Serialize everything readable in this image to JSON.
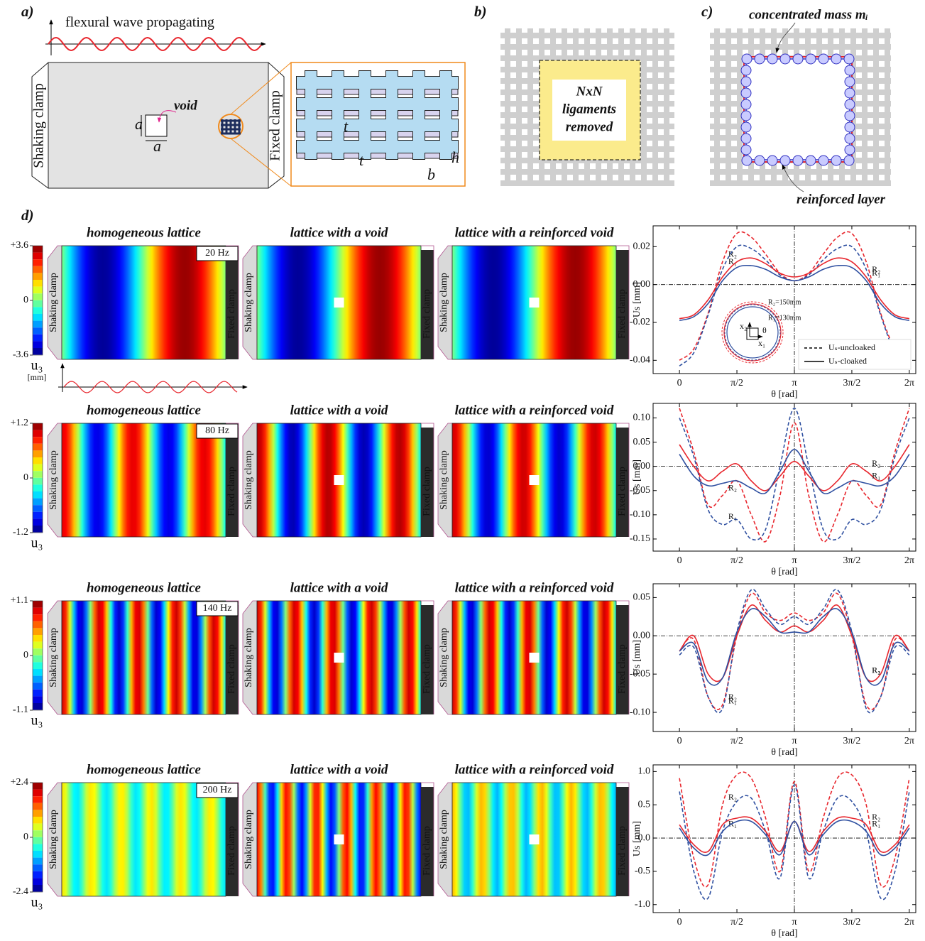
{
  "panel_a": {
    "label": "a)",
    "wave": "flexural wave propagating",
    "shaking": "Shaking clamp",
    "fixed": "Fixed clamp",
    "void": "void",
    "dims": [
      "a",
      "a"
    ],
    "zoom": [
      "t",
      "t",
      "b",
      "h"
    ]
  },
  "panel_b": {
    "label": "b)",
    "text": [
      "NxN",
      "ligaments",
      "removed"
    ]
  },
  "panel_c": {
    "label": "c)",
    "mass": "concentrated mass mᵢ",
    "layer": "reinforced layer"
  },
  "panel_d": {
    "label": "d)",
    "columns": [
      "homogeneous lattice",
      "lattice with a void",
      "lattice with a reinforced void"
    ],
    "shaking": "Shaking clamp",
    "fixed": "Fixed clamp",
    "rows": [
      {
        "frequency": "20 Hz",
        "colorbar": [
          {
            "value": 3.6,
            "label": "+3.6"
          },
          0,
          -3.6
        ],
        "unit": "u₃",
        "unit_note": "[mm]"
      },
      {
        "frequency": "80 Hz",
        "colorbar": [
          {
            "value": 1.2,
            "label": "+1.2"
          },
          0,
          -1.2
        ],
        "unit": "u₃"
      },
      {
        "frequency": "140 Hz",
        "colorbar": [
          {
            "value": 1.1,
            "label": "+1.1"
          },
          0,
          -1.1
        ],
        "unit": "u₃"
      },
      {
        "frequency": "200 Hz",
        "colorbar": [
          {
            "value": 2.4,
            "label": "+2.4"
          },
          0,
          -2.4
        ],
        "unit": "u₃"
      }
    ]
  },
  "chart_data": [
    {
      "type": "line",
      "xlabel": "θ [rad]",
      "ylabel": "Us [mm]",
      "reference_lines": true,
      "x": [
        0,
        0.3927,
        0.7854,
        1.1781,
        1.5708,
        1.9635,
        2.3562,
        2.7489,
        3.1416,
        3.5343,
        3.927,
        4.3197,
        4.7124,
        5.1051,
        5.4978,
        5.8905,
        6.2832
      ],
      "xlim": [
        -0.72,
        6.46
      ],
      "xticks": [
        0,
        {
          "value": 1.5708,
          "label": "π/2"
        },
        {
          "value": 3.1416,
          "label": "π"
        },
        {
          "value": 4.7124,
          "label": "3π/2"
        },
        {
          "value": 6.2832,
          "label": "2π"
        }
      ],
      "ylim": [
        -0.047,
        0.031
      ],
      "yticks": [
        -0.04,
        -0.02,
        {
          "value": 0,
          "label": "0.00"
        },
        0.02
      ],
      "legend": [
        "Uₛ-uncloaked",
        "Uₛ-cloaked"
      ],
      "legend_loc": "lower right",
      "inset": [
        "R₂=150mm",
        "R₁=130mm",
        "x₂",
        "x₁",
        "θ"
      ],
      "series": [
        {
          "name": "R₂",
          "color": "#e8262d",
          "dash": true,
          "values": [
            -0.04,
            -0.034,
            -0.015,
            0.012,
            0.027,
            0.025,
            0.016,
            0.006,
            0.002,
            0.006,
            0.016,
            0.025,
            0.027,
            0.012,
            -0.015,
            -0.034,
            -0.04
          ]
        },
        {
          "name": "R₁",
          "color": "#2e4fa0",
          "dash": true,
          "values": [
            -0.043,
            -0.036,
            -0.016,
            0.008,
            0.02,
            0.019,
            0.013,
            0.005,
            0.002,
            0.005,
            0.013,
            0.019,
            0.02,
            0.008,
            -0.016,
            -0.036,
            -0.043
          ]
        },
        {
          "name": "R₂",
          "color": "#e8262d",
          "dash": false,
          "values": [
            -0.018,
            -0.016,
            -0.008,
            0.004,
            0.012,
            0.014,
            0.011,
            0.006,
            0.004,
            0.006,
            0.011,
            0.014,
            0.012,
            0.004,
            -0.008,
            -0.016,
            -0.018
          ]
        },
        {
          "name": "R₁",
          "color": "#2e4fa0",
          "dash": false,
          "values": [
            -0.019,
            -0.017,
            -0.01,
            0.002,
            0.009,
            0.01,
            0.008,
            0.004,
            0.002,
            0.004,
            0.008,
            0.01,
            0.009,
            0.002,
            -0.01,
            -0.017,
            -0.019
          ]
        }
      ]
    },
    {
      "type": "line",
      "xlabel": "θ [rad]",
      "ylabel": "Us [mm]",
      "reference_lines": true,
      "x": [
        0,
        0.3927,
        0.7854,
        1.1781,
        1.5708,
        1.9635,
        2.3562,
        2.7489,
        3.1416,
        3.5343,
        3.927,
        4.3197,
        4.7124,
        5.1051,
        5.4978,
        5.8905,
        6.2832
      ],
      "xlim": [
        -0.72,
        6.46
      ],
      "xticks": [
        0,
        {
          "value": 1.5708,
          "label": "π/2"
        },
        {
          "value": 3.1416,
          "label": "π"
        },
        {
          "value": 4.7124,
          "label": "3π/2"
        },
        {
          "value": 6.2832,
          "label": "2π"
        }
      ],
      "ylim": [
        -0.175,
        0.13
      ],
      "yticks": [
        -0.15,
        {
          "value": -0.1,
          "label": "-0.10"
        },
        -0.05,
        {
          "value": 0,
          "label": "0.00"
        },
        0.05,
        {
          "value": 0.1,
          "label": "0.10"
        }
      ],
      "series": [
        {
          "name": "R₂",
          "color": "#e8262d",
          "dash": true,
          "values": [
            0.12,
            0.03,
            -0.08,
            -0.06,
            -0.03,
            -0.1,
            -0.155,
            -0.06,
            0.09,
            -0.06,
            -0.155,
            -0.1,
            -0.03,
            -0.06,
            -0.08,
            0.03,
            0.12
          ]
        },
        {
          "name": "R₁",
          "color": "#2e4fa0",
          "dash": true,
          "values": [
            0.1,
            0.02,
            -0.09,
            -0.12,
            -0.11,
            -0.15,
            -0.13,
            0.0,
            0.12,
            0.0,
            -0.13,
            -0.15,
            -0.11,
            -0.12,
            -0.09,
            0.02,
            0.1
          ]
        },
        {
          "name": "R₂",
          "color": "#e8262d",
          "dash": false,
          "values": [
            0.045,
            0.0,
            -0.03,
            -0.01,
            0.005,
            -0.03,
            -0.05,
            -0.02,
            0.01,
            -0.02,
            -0.05,
            -0.03,
            0.005,
            -0.01,
            -0.03,
            0.0,
            0.045
          ]
        },
        {
          "name": "R₁",
          "color": "#2e4fa0",
          "dash": false,
          "values": [
            0.025,
            -0.02,
            -0.04,
            -0.035,
            -0.03,
            -0.045,
            -0.055,
            -0.01,
            0.035,
            -0.01,
            -0.055,
            -0.045,
            -0.03,
            -0.035,
            -0.04,
            -0.02,
            0.025
          ]
        }
      ]
    },
    {
      "type": "line",
      "xlabel": "θ [rad]",
      "ylabel": "Us [mm]",
      "reference_lines": true,
      "x": [
        0,
        0.3927,
        0.7854,
        1.1781,
        1.5708,
        1.9635,
        2.3562,
        2.7489,
        3.1416,
        3.5343,
        3.927,
        4.3197,
        4.7124,
        5.1051,
        5.4978,
        5.8905,
        6.2832
      ],
      "xlim": [
        -0.72,
        6.46
      ],
      "xticks": [
        0,
        {
          "value": 1.5708,
          "label": "π/2"
        },
        {
          "value": 3.1416,
          "label": "π"
        },
        {
          "value": 4.7124,
          "label": "3π/2"
        },
        {
          "value": 6.2832,
          "label": "2π"
        }
      ],
      "ylim": [
        -0.125,
        0.068
      ],
      "yticks": [
        {
          "value": -0.1,
          "label": "-0.10"
        },
        -0.05,
        {
          "value": 0,
          "label": "0.00"
        },
        0.05
      ],
      "series": [
        {
          "name": "R₂",
          "color": "#e8262d",
          "dash": true,
          "values": [
            -0.02,
            -0.005,
            -0.08,
            -0.09,
            0.0,
            0.055,
            0.03,
            0.02,
            0.03,
            0.02,
            0.03,
            0.055,
            0.0,
            -0.09,
            -0.08,
            -0.005,
            -0.02
          ]
        },
        {
          "name": "R₁",
          "color": "#2e4fa0",
          "dash": true,
          "values": [
            -0.025,
            -0.015,
            -0.08,
            -0.095,
            0.005,
            0.06,
            0.035,
            0.015,
            0.025,
            0.015,
            0.035,
            0.06,
            0.005,
            -0.095,
            -0.08,
            -0.015,
            -0.025
          ]
        },
        {
          "name": "R₂",
          "color": "#e8262d",
          "dash": false,
          "values": [
            -0.02,
            0.0,
            -0.05,
            -0.055,
            0.0,
            0.04,
            0.02,
            0.005,
            0.013,
            0.005,
            0.02,
            0.04,
            0.0,
            -0.055,
            -0.05,
            0.0,
            -0.02
          ]
        },
        {
          "name": "R₁",
          "color": "#2e4fa0",
          "dash": false,
          "values": [
            -0.02,
            -0.01,
            -0.06,
            -0.055,
            0.005,
            0.035,
            0.025,
            0.005,
            0.005,
            0.005,
            0.025,
            0.035,
            0.005,
            -0.055,
            -0.06,
            -0.01,
            -0.02
          ]
        }
      ]
    },
    {
      "type": "line",
      "xlabel": "θ [rad]",
      "ylabel": "Us [mm]",
      "reference_lines": true,
      "x": [
        0,
        0.3927,
        0.7854,
        1.1781,
        1.5708,
        1.9635,
        2.3562,
        2.7489,
        3.1416,
        3.5343,
        3.927,
        4.3197,
        4.7124,
        5.1051,
        5.4978,
        5.8905,
        6.2832
      ],
      "xlim": [
        -0.72,
        6.46
      ],
      "xticks": [
        0,
        {
          "value": 1.5708,
          "label": "π/2"
        },
        {
          "value": 3.1416,
          "label": "π"
        },
        {
          "value": 4.7124,
          "label": "3π/2"
        },
        {
          "value": 6.2832,
          "label": "2π"
        }
      ],
      "ylim": [
        -1.12,
        1.1
      ],
      "yticks": [
        {
          "value": -1,
          "label": "-1.0"
        },
        -0.5,
        {
          "value": 0,
          "label": "0.0"
        },
        0.5,
        {
          "value": 1,
          "label": "1.0"
        }
      ],
      "series": [
        {
          "name": "R₂",
          "color": "#e8262d",
          "dash": true,
          "values": [
            0.9,
            -0.3,
            -0.7,
            0.5,
            0.95,
            0.9,
            0.3,
            -0.5,
            0.85,
            -0.5,
            0.3,
            0.9,
            0.95,
            0.5,
            -0.7,
            -0.3,
            0.9
          ]
        },
        {
          "name": "R₁",
          "color": "#2e4fa0",
          "dash": true,
          "values": [
            0.7,
            -0.5,
            -0.9,
            0.1,
            0.55,
            0.6,
            0.1,
            -0.6,
            0.8,
            -0.6,
            0.1,
            0.6,
            0.55,
            0.1,
            -0.9,
            -0.5,
            0.7
          ]
        },
        {
          "name": "R₂",
          "color": "#e8262d",
          "dash": false,
          "values": [
            0.2,
            -0.1,
            -0.2,
            0.2,
            0.3,
            0.3,
            0.1,
            -0.2,
            0.25,
            -0.2,
            0.1,
            0.3,
            0.3,
            0.2,
            -0.2,
            -0.1,
            0.2
          ]
        },
        {
          "name": "R₁",
          "color": "#2e4fa0",
          "dash": false,
          "values": [
            0.15,
            -0.15,
            -0.25,
            0.1,
            0.25,
            0.25,
            0.05,
            -0.25,
            0.25,
            -0.25,
            0.05,
            0.25,
            0.25,
            0.1,
            -0.25,
            -0.15,
            0.15
          ]
        }
      ]
    }
  ]
}
